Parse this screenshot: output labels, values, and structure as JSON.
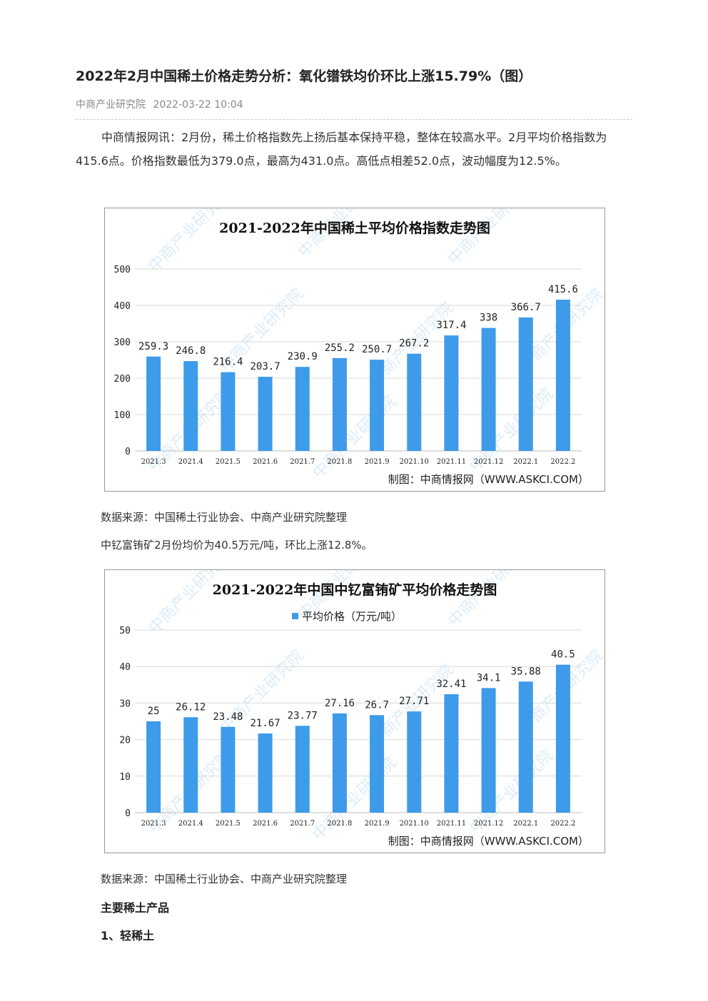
{
  "article": {
    "title": "2022年2月中国稀土价格走势分析：氧化镨铁均价环比上涨15.79%（图）",
    "source": "中商产业研究院",
    "datetime": "2022-03-22 10:04",
    "intro": "中商情报网讯：2月份，稀土价格指数先上扬后基本保持平稳，整体在较高水平。2月平均价格指数为415.6点。价格指数最低为379.0点，最高为431.0点。高低点相差52.0点，波动幅度为12.5%。",
    "caption1": "数据来源：中国稀土行业协会、中商产业研究院整理",
    "text2": "中钇富铕矿2月份均价为40.5万元/吨，环比上涨12.8%。",
    "caption2": "数据来源：中国稀土行业协会、中商产业研究院整理",
    "heading1": "主要稀土产品",
    "heading2": "1、轻稀土"
  },
  "colors": {
    "bar": "#3d9be9",
    "grid": "#d9d9d9",
    "watermark": "#9ac8ec"
  },
  "chart_data": [
    {
      "type": "bar",
      "title": "2021-2022年中国稀土平均价格指数走势图",
      "categories": [
        "2021.3",
        "2021.4",
        "2021.5",
        "2021.6",
        "2021.7",
        "2021.8",
        "2021.9",
        "2021.10",
        "2021.11",
        "2021.12",
        "2022.1",
        "2022.2"
      ],
      "values": [
        259.3,
        246.8,
        216.4,
        203.7,
        230.9,
        255.2,
        250.7,
        267.2,
        317.4,
        338,
        366.7,
        415.6
      ],
      "value_labels": [
        "259.3",
        "246.8",
        "216.4",
        "203.7",
        "230.9",
        "255.2",
        "250.7",
        "267.2",
        "317.4",
        "338",
        "366.7",
        "415.6"
      ],
      "ylim": [
        0,
        500
      ],
      "yticks": [
        0,
        100,
        200,
        300,
        400,
        500
      ],
      "grid": true,
      "legend": "",
      "credit": "制图：中商情报网（WWW.ASKCI.COM）",
      "watermark": "中商产业研究院"
    },
    {
      "type": "bar",
      "title": "2021-2022年中国中钇富铕矿平均价格走势图",
      "categories": [
        "2021.3",
        "2021.4",
        "2021.5",
        "2021.6",
        "2021.7",
        "2021.8",
        "2021.9",
        "2021.10",
        "2021.11",
        "2021.12",
        "2022.1",
        "2022.2"
      ],
      "series": [
        {
          "name": "平均价格（万元/吨）",
          "values": [
            25,
            26.12,
            23.48,
            21.67,
            23.77,
            27.16,
            26.7,
            27.71,
            32.41,
            34.1,
            35.88,
            40.5
          ]
        }
      ],
      "values": [
        25,
        26.12,
        23.48,
        21.67,
        23.77,
        27.16,
        26.7,
        27.71,
        32.41,
        34.1,
        35.88,
        40.5
      ],
      "value_labels": [
        "25",
        "26.12",
        "23.48",
        "21.67",
        "23.77",
        "27.16",
        "26.7",
        "27.71",
        "32.41",
        "34.1",
        "35.88",
        "40.5"
      ],
      "ylim": [
        0,
        50
      ],
      "yticks": [
        0,
        10,
        20,
        30,
        40,
        50
      ],
      "grid": true,
      "legend": "平均价格（万元/吨）",
      "credit": "制图：中商情报网（WWW.ASKCI.COM）",
      "watermark": "中商产业研究院"
    }
  ]
}
